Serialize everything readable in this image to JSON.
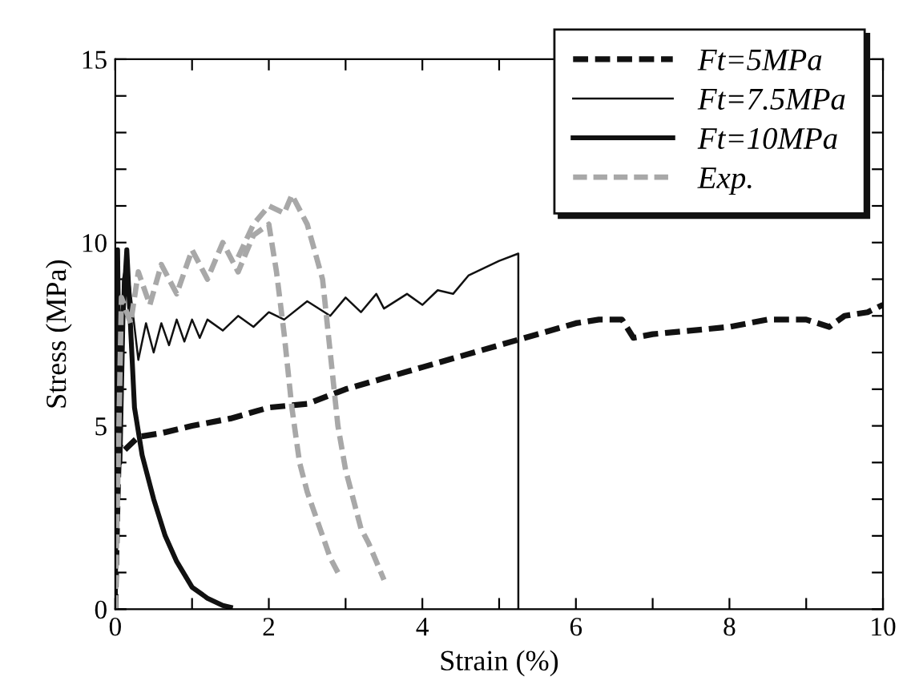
{
  "chart_data": {
    "type": "line",
    "xlabel": "Strain (%)",
    "ylabel": "Stress (MPa)",
    "xlim": [
      0,
      10
    ],
    "ylim": [
      0,
      15
    ],
    "xticks": [
      0,
      {
        "value": 1,
        "label": null
      },
      2,
      {
        "value": 3,
        "label": null
      },
      4,
      {
        "value": 5,
        "label": null
      },
      6,
      {
        "value": 7,
        "label": null
      },
      8,
      {
        "value": 9,
        "label": null
      },
      10
    ],
    "yticks": [
      0,
      {
        "value": 1,
        "label": null
      },
      {
        "value": 2,
        "label": null
      },
      {
        "value": 3,
        "label": null
      },
      {
        "value": 4,
        "label": null
      },
      5,
      {
        "value": 6,
        "label": null
      },
      {
        "value": 7,
        "label": null
      },
      {
        "value": 8,
        "label": null
      },
      {
        "value": 9,
        "label": null
      },
      10,
      {
        "value": 11,
        "label": null
      },
      {
        "value": 12,
        "label": null
      },
      {
        "value": 13,
        "label": null
      },
      {
        "value": 14,
        "label": null
      },
      15
    ],
    "grid": false,
    "legend": "top right",
    "marker": "none",
    "series": [
      {
        "name": "Ft=5MPa",
        "color": "#111111",
        "line_style": "dashed",
        "x": [
          0,
          0.03,
          0.05,
          0.1,
          0.3,
          0.6,
          1.0,
          1.5,
          2.0,
          2.5,
          3.0,
          3.5,
          4.0,
          4.5,
          5.0,
          5.5,
          6.0,
          6.3,
          6.6,
          6.75,
          7.0,
          7.5,
          8.0,
          8.5,
          9.0,
          9.3,
          9.5,
          9.8,
          10
        ],
        "values": [
          0,
          3.0,
          4.5,
          4.3,
          4.7,
          4.8,
          5.0,
          5.2,
          5.5,
          5.6,
          6.0,
          6.3,
          6.6,
          6.9,
          7.2,
          7.5,
          7.8,
          7.9,
          7.9,
          7.4,
          7.5,
          7.6,
          7.7,
          7.9,
          7.9,
          7.7,
          8.0,
          8.1,
          8.3
        ]
      },
      {
        "name": "Ft=7.5MPa",
        "color": "#111111",
        "line_style": "solid",
        "x": [
          0,
          0.1,
          0.15,
          0.3,
          0.4,
          0.5,
          0.6,
          0.7,
          0.8,
          0.9,
          1.0,
          1.1,
          1.2,
          1.4,
          1.6,
          1.8,
          2.0,
          2.2,
          2.5,
          2.8,
          3.0,
          3.2,
          3.4,
          3.5,
          3.8,
          4.0,
          4.2,
          4.4,
          4.6,
          5.0,
          5.25,
          5.25
        ],
        "values": [
          0,
          9.0,
          9.5,
          6.8,
          7.8,
          7.0,
          7.8,
          7.2,
          7.9,
          7.3,
          7.9,
          7.4,
          7.9,
          7.6,
          8.0,
          7.7,
          8.1,
          7.9,
          8.4,
          8.0,
          8.5,
          8.1,
          8.6,
          8.2,
          8.6,
          8.3,
          8.7,
          8.6,
          9.1,
          9.5,
          9.7,
          0
        ]
      },
      {
        "name": "Ft=10MPa",
        "color": "#111111",
        "line_style": "solid",
        "x": [
          0,
          0.03,
          0.06,
          0.1,
          0.15,
          0.25,
          0.35,
          0.5,
          0.65,
          0.8,
          1.0,
          1.2,
          1.4,
          1.5
        ],
        "values": [
          0,
          9.8,
          4.0,
          8.0,
          9.8,
          5.5,
          4.2,
          3.0,
          2.0,
          1.3,
          0.6,
          0.3,
          0.1,
          0.05
        ]
      },
      {
        "name": "Exp.",
        "color": "#a8a8a8",
        "line_style": "dashed",
        "x": [
          0,
          0.08,
          0.2,
          0.3,
          0.45,
          0.6,
          0.8,
          1.0,
          1.2,
          1.4,
          1.6,
          1.8,
          2.0,
          2.1,
          2.2,
          2.3,
          2.4,
          2.5,
          2.6,
          2.7,
          2.8,
          2.9,
          null,
          1.6,
          1.8,
          2.0,
          2.2,
          2.3,
          2.5,
          2.7,
          2.8,
          2.9,
          3.0,
          3.1,
          3.2,
          3.3,
          3.4,
          3.5
        ],
        "values": [
          0,
          8.5,
          7.8,
          9.2,
          8.3,
          9.4,
          8.6,
          9.8,
          9.0,
          10.0,
          9.2,
          10.2,
          10.5,
          9.2,
          7.5,
          5.5,
          4.0,
          3.2,
          2.6,
          2.0,
          1.4,
          1.0,
          null,
          9.6,
          10.5,
          11.0,
          10.8,
          11.3,
          10.5,
          9.0,
          7.0,
          5.0,
          3.8,
          3.0,
          2.2,
          1.8,
          1.3,
          0.8
        ]
      }
    ]
  }
}
